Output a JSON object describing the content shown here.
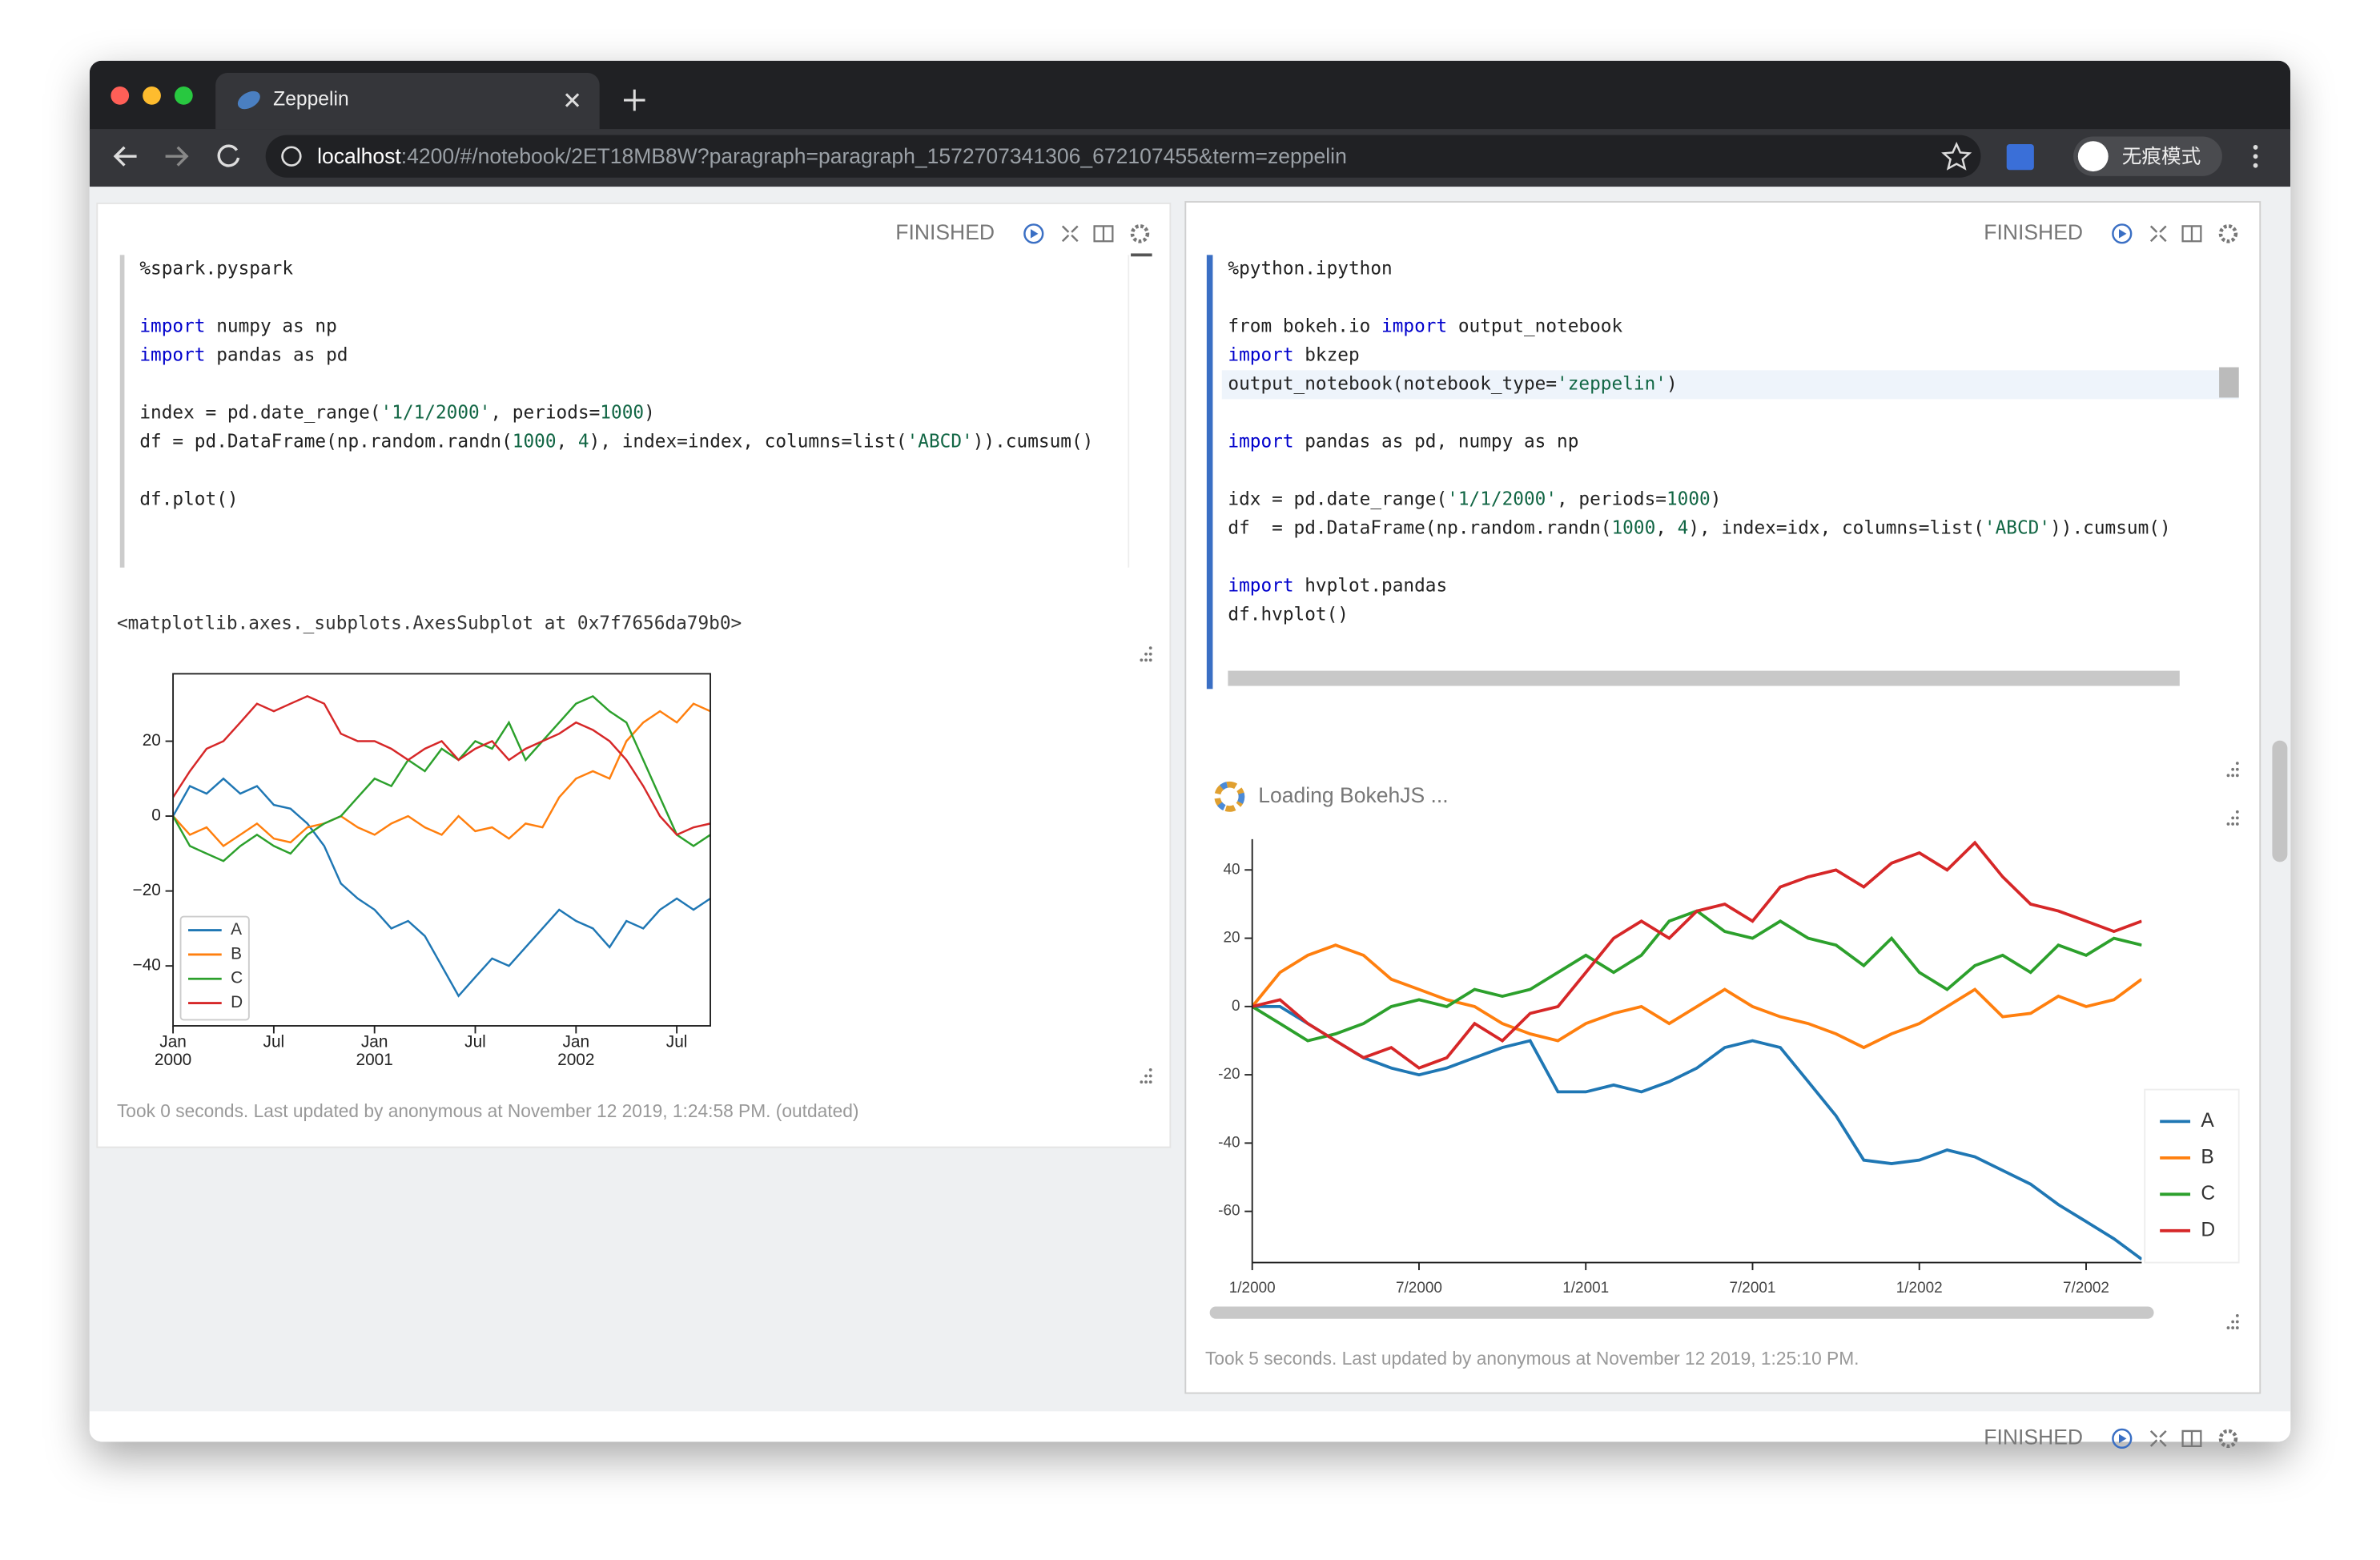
{
  "browser": {
    "tab_title": "Zeppelin",
    "url_host": "localhost",
    "url_path": ":4200/#/notebook/2ET18MB8W?paragraph=paragraph_1572707341306_672107455&term=zeppelin",
    "profile": "无痕模式"
  },
  "paragraphs": [
    {
      "status": "FINISHED",
      "code": [
        [
          "%spark.pyspark"
        ],
        [],
        [
          {
            "text": "import",
            "color": "#0000cc"
          },
          " numpy as np"
        ],
        [
          {
            "text": "import",
            "color": "#0000cc"
          },
          " pandas as pd"
        ],
        [],
        [
          "index = pd.date_range(",
          {
            "text": "'1/1/2000'",
            "color": "#116644"
          },
          ", periods=",
          {
            "text": "1000",
            "color": "#116644"
          },
          ")"
        ],
        [
          "df = pd.DataFrame(np.random.randn(",
          {
            "text": "1000",
            "color": "#116644"
          },
          ", ",
          {
            "text": "4",
            "color": "#116644"
          },
          "), index=index, columns=list(",
          {
            "text": "'ABCD'",
            "color": "#116644"
          },
          ")).cumsum()"
        ],
        [],
        [
          "df.plot()"
        ]
      ],
      "output_text": "<matplotlib.axes._subplots.AxesSubplot at 0x7f7656da79b0>",
      "footer": "Took 0 seconds. Last updated by anonymous at November 12 2019, 1:24:58 PM. (outdated)"
    },
    {
      "status": "FINISHED",
      "code": [
        [
          "%python.ipython"
        ],
        [],
        [
          "from bokeh.io ",
          {
            "text": "import",
            "color": "#0000cc"
          },
          " output_notebook"
        ],
        [
          {
            "text": "import",
            "color": "#0000cc"
          },
          " bkzep"
        ],
        [
          "output_notebook(notebook_type=",
          {
            "text": "'zeppelin'",
            "color": "#116644"
          },
          ")"
        ],
        [],
        [
          {
            "text": "import",
            "color": "#0000cc"
          },
          " pandas as pd, numpy as np"
        ],
        [],
        [
          "idx = pd.date_range(",
          {
            "text": "'1/1/2000'",
            "color": "#116644"
          },
          ", periods=",
          {
            "text": "1000",
            "color": "#116644"
          },
          ")"
        ],
        [
          "df  = pd.DataFrame(np.random.randn(",
          {
            "text": "1000",
            "color": "#116644"
          },
          ", ",
          {
            "text": "4",
            "color": "#116644"
          },
          "), index=idx, columns=list(",
          {
            "text": "'ABCD'",
            "color": "#116644"
          },
          ")).cumsum()"
        ],
        [],
        [
          {
            "text": "import",
            "color": "#0000cc"
          },
          " hvplot.pandas"
        ],
        [
          "df.hvplot()"
        ]
      ],
      "loading": "Loading BokehJS ...",
      "footer": "Took 5 seconds. Last updated by anonymous at November 12 2019, 1:25:10 PM."
    }
  ],
  "next_paragraph": {
    "status": "FINISHED"
  },
  "chart_data": [
    {
      "type": "line",
      "frame": "box",
      "legend": "lower left",
      "x": [
        "2000-01",
        "2000-02",
        "2000-03",
        "2000-04",
        "2000-05",
        "2000-06",
        "2000-07",
        "2000-08",
        "2000-09",
        "2000-10",
        "2000-11",
        "2000-12",
        "2001-01",
        "2001-02",
        "2001-03",
        "2001-04",
        "2001-05",
        "2001-06",
        "2001-07",
        "2001-08",
        "2001-09",
        "2001-10",
        "2001-11",
        "2001-12",
        "2002-01",
        "2002-02",
        "2002-03",
        "2002-04",
        "2002-05",
        "2002-06",
        "2002-07",
        "2002-08",
        "2002-09"
      ],
      "xlim": [
        "2000-01",
        "2002-09"
      ],
      "xticks": [
        {
          "value": "2000-01",
          "label": "Jan",
          "year": "2000"
        },
        {
          "value": "2000-07",
          "label": "Jul"
        },
        {
          "value": "2001-01",
          "label": "Jan",
          "year": "2001"
        },
        {
          "value": "2001-07",
          "label": "Jul"
        },
        {
          "value": "2002-01",
          "label": "Jan",
          "year": "2002"
        },
        {
          "value": "2002-07",
          "label": "Jul"
        }
      ],
      "ylim": [
        -56,
        38
      ],
      "yticks": [
        {
          "value": -40,
          "label": "−40"
        },
        {
          "value": -20,
          "label": "−20"
        },
        0,
        20
      ],
      "series": [
        {
          "name": "A",
          "color": "#1f77b4",
          "values": [
            0,
            8,
            6,
            10,
            6,
            8,
            3,
            2,
            -2,
            -8,
            -18,
            -22,
            -25,
            -30,
            -28,
            -32,
            -40,
            -48,
            -43,
            -38,
            -40,
            -35,
            -30,
            -25,
            -28,
            -30,
            -35,
            -28,
            -30,
            -25,
            -22,
            -25,
            -22
          ]
        },
        {
          "name": "B",
          "color": "#ff7f0e",
          "values": [
            0,
            -5,
            -3,
            -8,
            -5,
            -2,
            -6,
            -7,
            -3,
            -2,
            0,
            -3,
            -5,
            -2,
            0,
            -3,
            -5,
            0,
            -4,
            -3,
            -6,
            -2,
            -3,
            5,
            10,
            12,
            10,
            20,
            25,
            28,
            25,
            30,
            28
          ]
        },
        {
          "name": "C",
          "color": "#2ca02c",
          "values": [
            0,
            -8,
            -10,
            -12,
            -8,
            -5,
            -8,
            -10,
            -5,
            -2,
            0,
            5,
            10,
            8,
            15,
            12,
            18,
            15,
            20,
            18,
            25,
            15,
            20,
            25,
            30,
            32,
            28,
            25,
            15,
            5,
            -5,
            -8,
            -5
          ]
        },
        {
          "name": "D",
          "color": "#d62728",
          "values": [
            5,
            12,
            18,
            20,
            25,
            30,
            28,
            30,
            32,
            30,
            22,
            20,
            20,
            18,
            15,
            18,
            20,
            15,
            18,
            20,
            15,
            18,
            20,
            22,
            25,
            23,
            20,
            15,
            8,
            0,
            -5,
            -3,
            -2
          ]
        }
      ]
    },
    {
      "type": "line",
      "frame": "axes",
      "legend": "right",
      "x": [
        "2000-01",
        "2000-02",
        "2000-03",
        "2000-04",
        "2000-05",
        "2000-06",
        "2000-07",
        "2000-08",
        "2000-09",
        "2000-10",
        "2000-11",
        "2000-12",
        "2001-01",
        "2001-02",
        "2001-03",
        "2001-04",
        "2001-05",
        "2001-06",
        "2001-07",
        "2001-08",
        "2001-09",
        "2001-10",
        "2001-11",
        "2001-12",
        "2002-01",
        "2002-02",
        "2002-03",
        "2002-04",
        "2002-05",
        "2002-06",
        "2002-07",
        "2002-08",
        "2002-09"
      ],
      "xlim": [
        "2000-01",
        "2002-09"
      ],
      "xticks": [
        {
          "value": "2000-01",
          "label": "1/2000"
        },
        {
          "value": "2000-07",
          "label": "7/2000"
        },
        {
          "value": "2001-01",
          "label": "1/2001"
        },
        {
          "value": "2001-07",
          "label": "7/2001"
        },
        {
          "value": "2002-01",
          "label": "1/2002"
        },
        {
          "value": "2002-07",
          "label": "7/2002"
        }
      ],
      "ylim": [
        -75,
        49
      ],
      "yticks": [
        -60,
        -40,
        -20,
        0,
        20,
        40
      ],
      "series": [
        {
          "name": "A",
          "color": "#1f77b4",
          "values": [
            0,
            0,
            -5,
            -10,
            -15,
            -18,
            -20,
            -18,
            -15,
            -12,
            -10,
            -25,
            -25,
            -23,
            -25,
            -22,
            -18,
            -12,
            -10,
            -12,
            -22,
            -32,
            -45,
            -46,
            -45,
            -42,
            -44,
            -48,
            -52,
            -58,
            -63,
            -68,
            -74
          ]
        },
        {
          "name": "B",
          "color": "#ff7f0e",
          "values": [
            0,
            10,
            15,
            18,
            15,
            8,
            5,
            2,
            0,
            -5,
            -8,
            -10,
            -5,
            -2,
            0,
            -5,
            0,
            5,
            0,
            -3,
            -5,
            -8,
            -12,
            -8,
            -5,
            0,
            5,
            -3,
            -2,
            3,
            0,
            2,
            8
          ]
        },
        {
          "name": "C",
          "color": "#2ca02c",
          "values": [
            0,
            -5,
            -10,
            -8,
            -5,
            0,
            2,
            0,
            5,
            3,
            5,
            10,
            15,
            10,
            15,
            25,
            28,
            22,
            20,
            25,
            20,
            18,
            12,
            20,
            10,
            5,
            12,
            15,
            10,
            18,
            15,
            20,
            18
          ]
        },
        {
          "name": "D",
          "color": "#d62728",
          "values": [
            0,
            2,
            -5,
            -10,
            -15,
            -12,
            -18,
            -15,
            -5,
            -10,
            -2,
            0,
            10,
            20,
            25,
            20,
            28,
            30,
            25,
            35,
            38,
            40,
            35,
            42,
            45,
            40,
            48,
            38,
            30,
            28,
            25,
            22,
            25
          ]
        }
      ]
    }
  ]
}
